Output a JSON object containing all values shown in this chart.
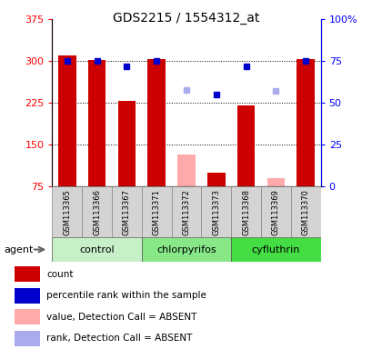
{
  "title": "GDS2215 / 1554312_at",
  "samples": [
    "GSM113365",
    "GSM113366",
    "GSM113367",
    "GSM113371",
    "GSM113372",
    "GSM113373",
    "GSM113368",
    "GSM113369",
    "GSM113370"
  ],
  "groups": [
    {
      "name": "control",
      "indices": [
        0,
        1,
        2
      ]
    },
    {
      "name": "chlorpyrifos",
      "indices": [
        3,
        4,
        5
      ]
    },
    {
      "name": "cyfluthrin",
      "indices": [
        6,
        7,
        8
      ]
    }
  ],
  "group_colors": [
    "#c8f0c8",
    "#88e888",
    "#44dd44"
  ],
  "bar_values": [
    310,
    302,
    228,
    303,
    null,
    100,
    220,
    null,
    303
  ],
  "absent_bar_values": [
    null,
    null,
    null,
    null,
    132,
    null,
    null,
    90,
    null
  ],
  "rank_values_pct": [
    75,
    75,
    72,
    75,
    58,
    55,
    72,
    57,
    75
  ],
  "rank_present": [
    true,
    true,
    true,
    true,
    false,
    true,
    true,
    false,
    true
  ],
  "ylim_left": [
    75,
    375
  ],
  "ylim_right": [
    0,
    100
  ],
  "yticks_left": [
    75,
    150,
    225,
    300,
    375
  ],
  "yticks_right": [
    0,
    25,
    50,
    75,
    100
  ],
  "ytick_labels_right": [
    "0",
    "25",
    "50",
    "75",
    "100%"
  ],
  "grid_values": [
    150,
    225,
    300
  ],
  "legend_colors": [
    "#cc0000",
    "#0000cc",
    "#ffaaaa",
    "#aaaaee"
  ],
  "legend_labels": [
    "count",
    "percentile rank within the sample",
    "value, Detection Call = ABSENT",
    "rank, Detection Call = ABSENT"
  ]
}
